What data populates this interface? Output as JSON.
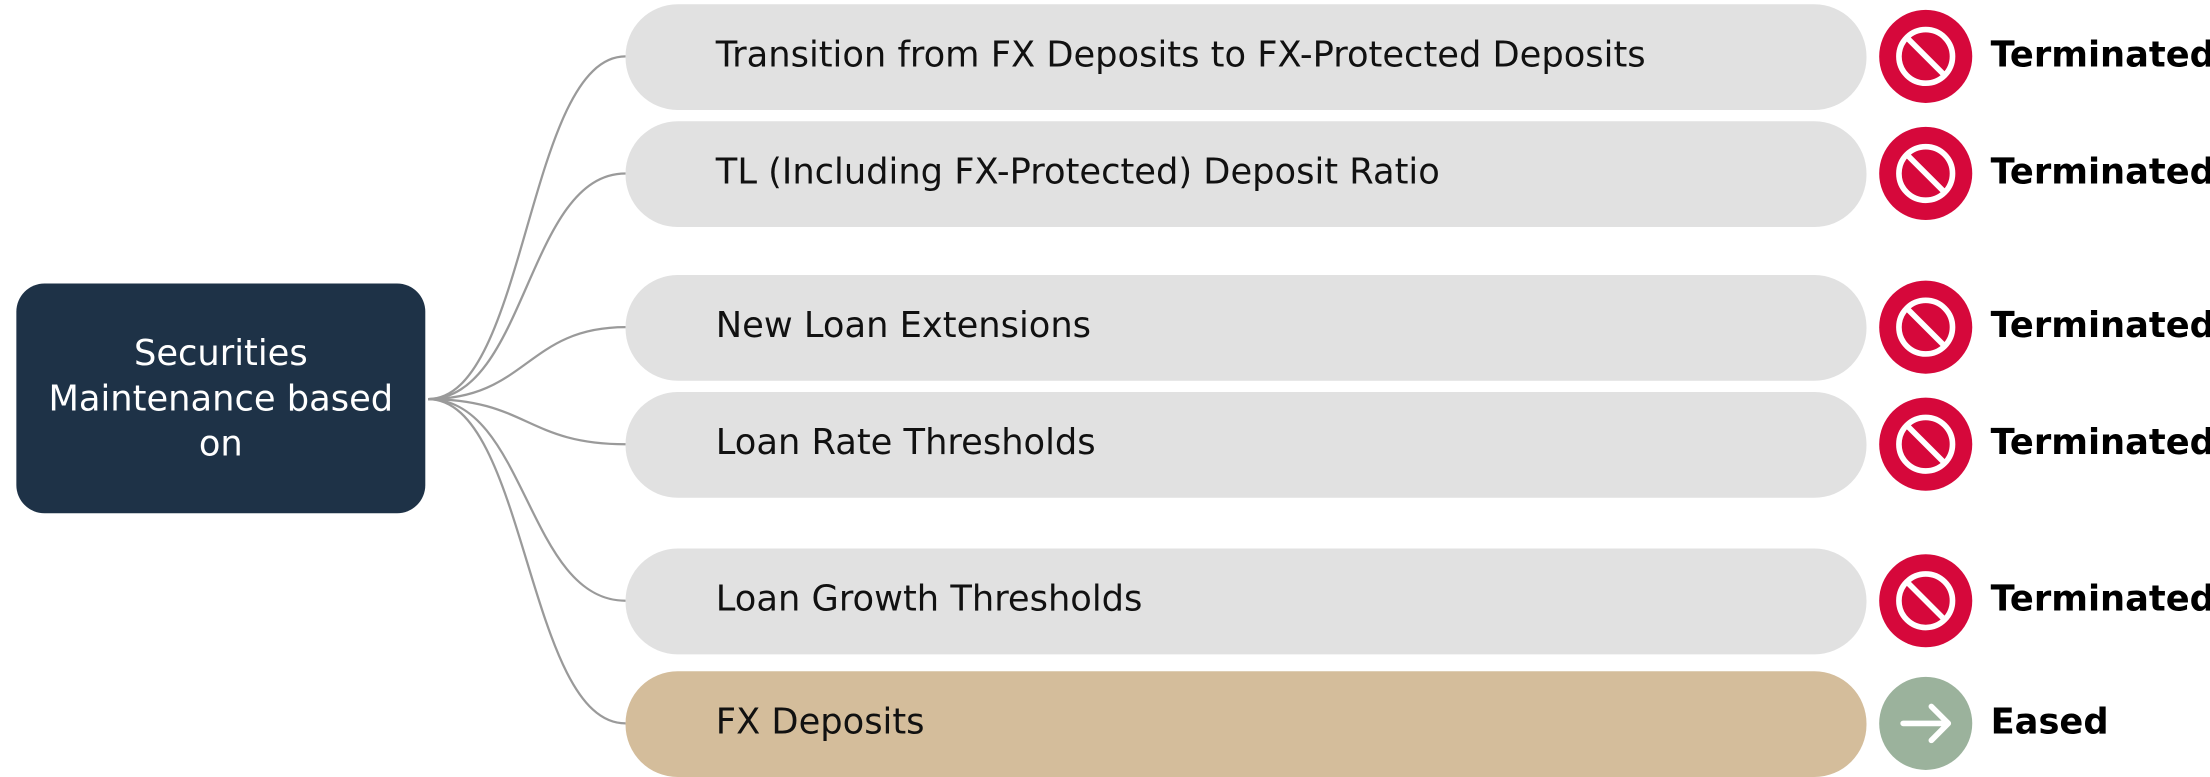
{
  "root": {
    "label": "Securities Maintenance based on"
  },
  "items": [
    {
      "label": "Transition from FX Deposits to FX-Protected Deposits",
      "status": "Terminated"
    },
    {
      "label": "TL (Including FX-Protected) Deposit Ratio",
      "status": "Terminated"
    },
    {
      "label": "New Loan Extensions",
      "status": "Terminated"
    },
    {
      "label": "Loan Rate Thresholds",
      "status": "Terminated"
    },
    {
      "label": "Loan Growth Thresholds",
      "status": "Terminated"
    },
    {
      "label": "FX Deposits",
      "status": "Eased"
    }
  ]
}
